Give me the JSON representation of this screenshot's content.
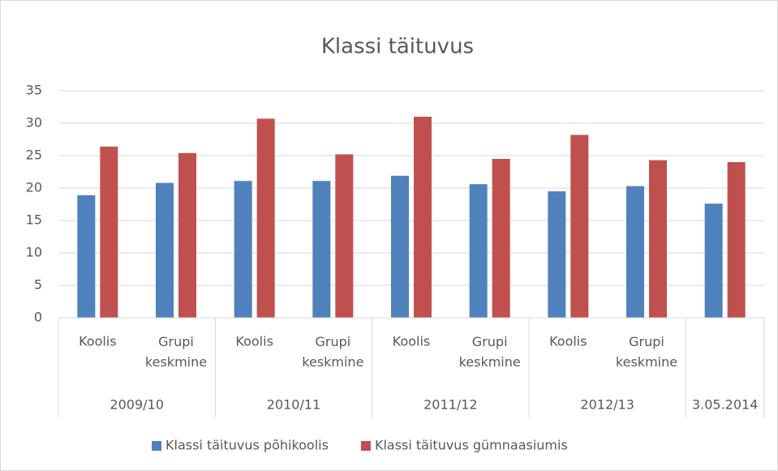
{
  "chart_data": {
    "type": "bar",
    "title": "Klassi täituvus",
    "categories": [
      "Koolis",
      "Grupi keskmine",
      "Koolis",
      "Grupi keskmine",
      "Koolis",
      "Grupi keskmine",
      "Koolis",
      "Grupi keskmine",
      null
    ],
    "groups": [
      {
        "label": "2009/10",
        "size": 2
      },
      {
        "label": "2010/11",
        "size": 2
      },
      {
        "label": "2011/12",
        "size": 2
      },
      {
        "label": "2012/13",
        "size": 2
      },
      {
        "label": "3.05.2014",
        "size": 1
      }
    ],
    "series": [
      {
        "name": "Klassi täituvus põhikoolis",
        "color": "#4f81bd",
        "values": [
          18.9,
          20.8,
          21.1,
          21.1,
          21.9,
          20.6,
          19.5,
          20.3,
          17.6
        ]
      },
      {
        "name": "Klassi täituvus gümnaasiumis",
        "color": "#c0504d",
        "values": [
          26.4,
          25.4,
          30.7,
          25.2,
          31.0,
          24.5,
          28.2,
          24.3,
          24.0
        ]
      }
    ],
    "ylim": [
      0,
      35
    ],
    "yticks": [
      0,
      5,
      10,
      15,
      20,
      25,
      30,
      35
    ],
    "grid": true,
    "legend": "bottom"
  }
}
